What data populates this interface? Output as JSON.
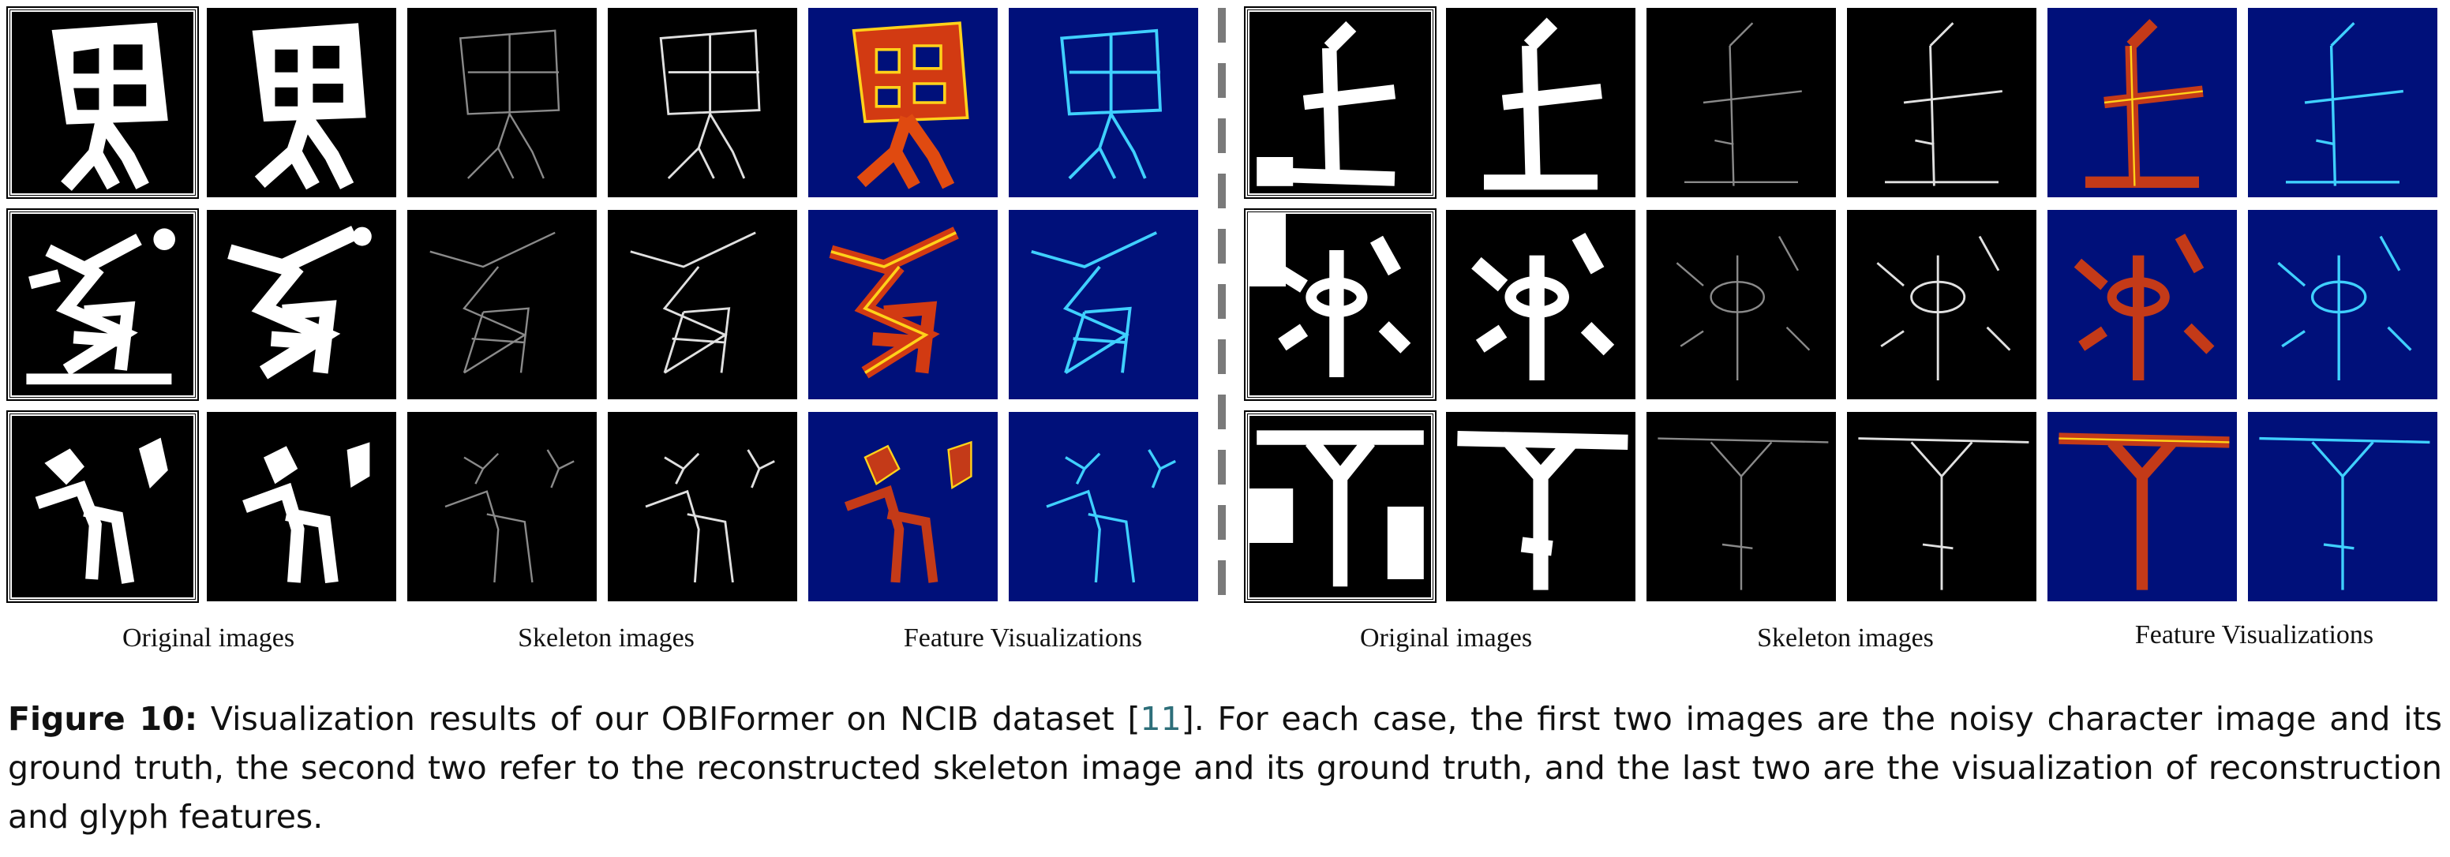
{
  "column_labels": {
    "left": [
      "Original images",
      "Skeleton images",
      "Feature Visualizations"
    ],
    "right": [
      "Original images",
      "Skeleton images",
      "Feature Visualizations"
    ]
  },
  "caption": {
    "figure_label": "Figure 10:",
    "text_before_cite": " Visualization results of our OBIFormer on NCIB dataset [",
    "cite": "11",
    "text_after_cite": "]. For each case, the first two images are the noisy character image and its ground truth, the second two refer to the reconstructed skeleton image and its ground truth, and the last two are the visualization of reconstruction and glyph features."
  },
  "colors": {
    "tile_background": "#000000",
    "feature_background": "#00107a",
    "divider": "#7a7a7a",
    "citation": "#2e6f7a"
  }
}
